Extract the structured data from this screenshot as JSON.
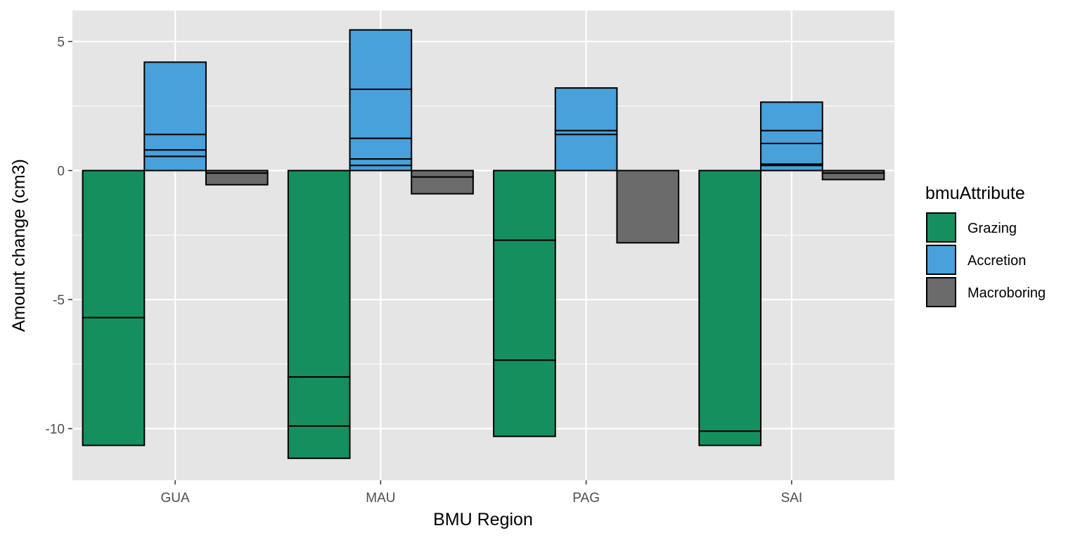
{
  "chart_data": {
    "type": "bar",
    "stacked_segments": true,
    "xlabel": "BMU Region",
    "ylabel": "Amount change (cm3)",
    "categories": [
      "GUA",
      "MAU",
      "PAG",
      "SAI"
    ],
    "ylim": [
      -12,
      6.2
    ],
    "y_ticks": [
      {
        "value": -10,
        "label": "-10"
      },
      {
        "value": -5,
        "label": "-5"
      },
      {
        "value": 0,
        "label": "0"
      },
      {
        "value": 5,
        "label": "5"
      }
    ],
    "grid": true,
    "legend": {
      "title": "bmuAttribute",
      "placement": "right"
    },
    "series": [
      {
        "name": "Grazing",
        "color": "#168f5f",
        "segments": [
          [
            -5.7,
            -4.95
          ],
          [
            -8.0,
            -1.9,
            -1.25
          ],
          [
            -2.7,
            -4.65,
            -2.95
          ],
          [
            -10.1,
            -0.55
          ]
        ]
      },
      {
        "name": "Accretion",
        "color": "#48a1da",
        "segments": [
          [
            0.55,
            0.25,
            0.6,
            2.8
          ],
          [
            0.2,
            0.25,
            0.8,
            1.9,
            2.3
          ],
          [
            1.4,
            0.15,
            1.65
          ],
          [
            0.2,
            0.05,
            0.8,
            0.5,
            1.1
          ]
        ]
      },
      {
        "name": "Macroboring",
        "color": "#6b6b6b",
        "segments": [
          [
            -0.1,
            -0.45
          ],
          [
            -0.25,
            -0.65
          ],
          [
            -2.8
          ],
          [
            -0.1,
            -0.25
          ]
        ]
      }
    ]
  }
}
